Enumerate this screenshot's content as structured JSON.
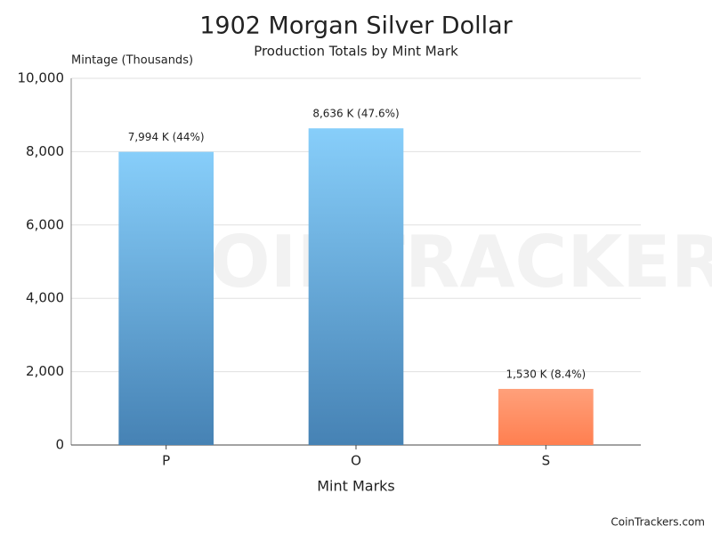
{
  "chart_data": {
    "type": "bar",
    "title": "1902 Morgan Silver Dollar",
    "subtitle": "Production Totals by Mint Mark",
    "y_label": "Mintage (Thousands)",
    "x_label": "Mint Marks",
    "watermark": "COINTRACKERS",
    "credit": "CoinTrackers.com",
    "categories": [
      "P",
      "O",
      "S"
    ],
    "values": [
      7994,
      8636,
      1530
    ],
    "value_labels": [
      "7,994 K (44%)",
      "8,636 K (47.6%)",
      "1,530 K (8.4%)"
    ],
    "colors": [
      [
        "#87cefa",
        "#4682b4"
      ],
      [
        "#87cefa",
        "#4682b4"
      ],
      [
        "#ffa07a",
        "#ff7f50"
      ]
    ],
    "ylim": [
      0,
      10000
    ],
    "yticks": [
      0,
      {
        "value": 2000,
        "label": "2,000"
      },
      {
        "value": 4000,
        "label": "4,000"
      },
      {
        "value": 6000,
        "label": "6,000"
      },
      {
        "value": 8000,
        "label": "8,000"
      },
      {
        "value": 10000,
        "label": "10,000"
      }
    ],
    "grid": true
  }
}
